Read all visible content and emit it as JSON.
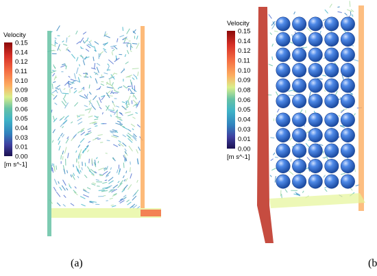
{
  "panels": [
    {
      "id": "a",
      "caption": "(a)",
      "legend": {
        "title": "Velocity",
        "unit": "[m s^-1]",
        "ticks": [
          "0.15",
          "0.14",
          "0.12",
          "0.11",
          "0.10",
          "0.09",
          "0.08",
          "0.06",
          "0.05",
          "0.04",
          "0.03",
          "0.01",
          "0.00"
        ]
      }
    },
    {
      "id": "b",
      "caption": "(b)",
      "legend": {
        "title": "Velocity",
        "unit": "[m s^-1]",
        "ticks": [
          "0.15",
          "0.14",
          "0.12",
          "0.11",
          "0.10",
          "0.09",
          "0.08",
          "0.06",
          "0.05",
          "0.04",
          "0.03",
          "0.01",
          "0.00"
        ]
      },
      "spheres": {
        "rows": 11,
        "cols": 5,
        "color": "#2f6fd6"
      }
    }
  ],
  "colormap": [
    "#9e0142",
    "#d53e4f",
    "#f46d43",
    "#fdae61",
    "#fee08b",
    "#e6f598",
    "#abdda4",
    "#66c2a5",
    "#3288bd",
    "#2b3a9a",
    "#1a1a5e"
  ]
}
